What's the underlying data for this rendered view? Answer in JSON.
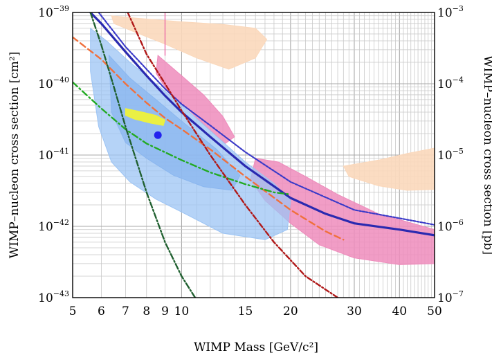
{
  "chart_data": {
    "type": "line",
    "title": "",
    "xlabel": "WIMP Mass [GeV/c²]",
    "ylabel": "WIMP–nucleon cross section [cm²]",
    "ylabel_right": "WIMP–nucleon cross section [pb]",
    "x_scale": "log",
    "y_scale": "log",
    "xlim": [
      5,
      50
    ],
    "ylim": [
      1e-43,
      1e-39
    ],
    "ylim_right_pb": [
      1e-07,
      0.001
    ],
    "grid": true,
    "legend": "none",
    "x_ticks": [
      5,
      6,
      7,
      8,
      9,
      10,
      15,
      20,
      30,
      40,
      50
    ],
    "x_tick_labels": [
      "5",
      "6",
      "7",
      "8",
      "9",
      "10",
      "15",
      "20",
      "30",
      "40",
      "50"
    ],
    "y_ticks": [
      {
        "value": 1e-43,
        "base": "10",
        "exp": "−43"
      },
      {
        "value": 1e-42,
        "base": "10",
        "exp": "−42"
      },
      {
        "value": 1e-41,
        "base": "10",
        "exp": "−41"
      },
      {
        "value": 1e-40,
        "base": "10",
        "exp": "−40"
      },
      {
        "value": 1e-39,
        "base": "10",
        "exp": "−39"
      }
    ],
    "y_ticks_right": [
      {
        "value": 1e-43,
        "base": "10",
        "exp": "−7"
      },
      {
        "value": 1e-42,
        "base": "10",
        "exp": "−6"
      },
      {
        "value": 1e-41,
        "base": "10",
        "exp": "−5"
      },
      {
        "value": 1e-40,
        "base": "10",
        "exp": "−4"
      },
      {
        "value": 1e-39,
        "base": "10",
        "exp": "−3"
      }
    ],
    "regions": [
      {
        "color": "#fbd8bb",
        "opacity": 0.9,
        "points": [
          [
            6.4,
            9e-40
          ],
          [
            7.5,
            8.3e-40
          ],
          [
            10,
            7.4e-40
          ],
          [
            13,
            6.8e-40
          ],
          [
            16,
            6e-40
          ],
          [
            17.2,
            4.2e-40
          ],
          [
            16,
            2.3e-40
          ],
          [
            13.5,
            1.6e-40
          ],
          [
            11,
            2.3e-40
          ],
          [
            9,
            3.6e-40
          ],
          [
            7.5,
            5.2e-40
          ],
          [
            6.5,
            7e-40
          ]
        ]
      },
      {
        "color": "#fbd8bb",
        "opacity": 0.9,
        "points": [
          [
            28,
            7e-42
          ],
          [
            35,
            8.5e-42
          ],
          [
            42,
            1.05e-41
          ],
          [
            50,
            1.25e-41
          ],
          [
            50,
            3.3e-42
          ],
          [
            42,
            3.2e-42
          ],
          [
            35,
            3.7e-42
          ],
          [
            29,
            5e-42
          ]
        ]
      },
      {
        "color": "#ee8cbc",
        "opacity": 0.85,
        "points": [
          [
            8.6,
            2.5e-40
          ],
          [
            10,
            1.3e-40
          ],
          [
            11.5,
            7e-41
          ],
          [
            13,
            3.5e-41
          ],
          [
            14,
            1.8e-41
          ],
          [
            13.2,
            1.45e-41
          ],
          [
            12,
            2.2e-41
          ],
          [
            10.5,
            4.2e-41
          ],
          [
            9.2,
            7.5e-41
          ],
          [
            8.5,
            1.4e-40
          ]
        ]
      },
      {
        "color": "#ee8cbc",
        "opacity": 0.85,
        "points": [
          [
            16,
            9e-42
          ],
          [
            18.5,
            8e-42
          ],
          [
            22,
            5e-42
          ],
          [
            27,
            2.8e-42
          ],
          [
            35,
            1.5e-42
          ],
          [
            50,
            9e-43
          ],
          [
            50,
            3e-43
          ],
          [
            40,
            2.9e-43
          ],
          [
            30,
            3.6e-43
          ],
          [
            24,
            5.5e-43
          ],
          [
            20,
            1.1e-42
          ],
          [
            17,
            2.3e-42
          ],
          [
            15.5,
            4.5e-42
          ]
        ]
      },
      {
        "color": "#9cc4f4",
        "opacity": 0.75,
        "points": [
          [
            5.6,
            6e-40
          ],
          [
            6.2,
            4e-40
          ],
          [
            7.2,
            2e-40
          ],
          [
            8.5,
            1e-40
          ],
          [
            10,
            5e-41
          ],
          [
            12,
            2.2e-41
          ],
          [
            15,
            8e-42
          ],
          [
            18,
            4e-42
          ],
          [
            20,
            2.3e-42
          ],
          [
            19.6,
            9e-43
          ],
          [
            17,
            6.5e-43
          ],
          [
            13,
            8e-43
          ],
          [
            10.5,
            1.4e-42
          ],
          [
            8.5,
            2.4e-42
          ],
          [
            7.2,
            4.2e-42
          ],
          [
            6.4,
            8e-42
          ],
          [
            5.9,
            2.5e-41
          ],
          [
            5.6,
            1.5e-40
          ]
        ]
      },
      {
        "color": "#8ab6ef",
        "opacity": 0.75,
        "points": [
          [
            6.3,
            2.5e-40
          ],
          [
            7.2,
            1.2e-40
          ],
          [
            8.5,
            6e-41
          ],
          [
            10,
            3e-41
          ],
          [
            12.5,
            1.2e-41
          ],
          [
            14.5,
            5.2e-42
          ],
          [
            13.8,
            3.2e-42
          ],
          [
            11.5,
            3.6e-42
          ],
          [
            9.5,
            5.2e-42
          ],
          [
            8,
            9e-42
          ],
          [
            7,
            1.5e-41
          ],
          [
            6.4,
            4e-41
          ]
        ]
      },
      {
        "color": "#eef23a",
        "opacity": 0.95,
        "points": [
          [
            7,
            4.5e-41
          ],
          [
            7.8,
            4e-41
          ],
          [
            8.5,
            3.6e-41
          ],
          [
            9,
            3.1e-41
          ],
          [
            8.9,
            2.6e-41
          ],
          [
            8.2,
            2.8e-41
          ],
          [
            7.4,
            3.2e-41
          ],
          [
            7,
            3.6e-41
          ]
        ]
      }
    ],
    "series": [
      {
        "color": "#2a2ab0",
        "width": 3.2,
        "dash": "",
        "points": [
          [
            5.6,
            1e-39
          ],
          [
            6,
            7e-40
          ],
          [
            7,
            2.8e-40
          ],
          [
            8,
            1.3e-40
          ],
          [
            9,
            6.8e-41
          ],
          [
            10,
            4e-41
          ],
          [
            12,
            1.8e-41
          ],
          [
            15,
            7e-42
          ],
          [
            20,
            2.5e-42
          ],
          [
            25,
            1.5e-42
          ],
          [
            30,
            1.1e-42
          ],
          [
            40,
            9e-43
          ],
          [
            50,
            7.5e-43
          ]
        ]
      },
      {
        "color": "#3a3ac8",
        "width": 2.2,
        "dash": "3,2",
        "points": [
          [
            5.9,
            1e-39
          ],
          [
            7,
            3.3e-40
          ],
          [
            8,
            1.6e-40
          ],
          [
            9,
            8.5e-41
          ],
          [
            10,
            5.2e-41
          ],
          [
            12,
            2.6e-41
          ],
          [
            15,
            1.1e-41
          ],
          [
            20,
            4.2e-42
          ],
          [
            30,
            1.7e-42
          ],
          [
            40,
            1.3e-42
          ],
          [
            50,
            1.05e-42
          ]
        ]
      },
      {
        "color": "#f0703c",
        "width": 2.4,
        "dash": "9,5",
        "points": [
          [
            5,
            4.5e-40
          ],
          [
            6,
            2.2e-40
          ],
          [
            7,
            1e-40
          ],
          [
            8,
            5.4e-41
          ],
          [
            9,
            3.3e-41
          ],
          [
            10,
            2.3e-41
          ],
          [
            12,
            1.2e-41
          ],
          [
            15,
            5e-42
          ],
          [
            20,
            1.7e-42
          ],
          [
            25,
            8.5e-43
          ],
          [
            28,
            6.5e-43
          ]
        ]
      },
      {
        "color": "#22aa22",
        "width": 2.4,
        "dash": "9,4,2,4",
        "points": [
          [
            5,
            1.05e-40
          ],
          [
            6,
            4.5e-41
          ],
          [
            7,
            2.3e-41
          ],
          [
            8,
            1.45e-41
          ],
          [
            10,
            8.5e-42
          ],
          [
            12,
            5.7e-42
          ],
          [
            15,
            3.9e-42
          ],
          [
            18,
            3e-42
          ],
          [
            20,
            2.8e-42
          ]
        ]
      },
      {
        "color": "#b01818",
        "width": 2.4,
        "dash": "7,3,2,3",
        "points": [
          [
            7.1,
            1e-39
          ],
          [
            8,
            2.6e-40
          ],
          [
            9,
            1e-40
          ],
          [
            10,
            4.2e-41
          ],
          [
            12,
            1e-41
          ],
          [
            15,
            2e-42
          ],
          [
            18,
            6e-43
          ],
          [
            22,
            2e-43
          ],
          [
            27,
            1e-43
          ]
        ]
      },
      {
        "color": "#206030",
        "width": 2.4,
        "dash": "8,3,2,3",
        "points": [
          [
            5.6,
            1e-39
          ],
          [
            6,
            3.5e-40
          ],
          [
            6.5,
            9e-41
          ],
          [
            7,
            2.5e-41
          ],
          [
            8,
            3e-42
          ],
          [
            9,
            6e-43
          ],
          [
            10,
            2e-43
          ],
          [
            10.9,
            1e-43
          ]
        ]
      },
      {
        "color": "#eb6aa6",
        "width": 1.4,
        "dash": "",
        "points": [
          [
            9,
            1e-39
          ],
          [
            9,
            2.5e-40
          ]
        ]
      }
    ],
    "points": [
      {
        "x": 8.6,
        "y": 1.9e-41,
        "color": "#2222ee"
      }
    ]
  }
}
